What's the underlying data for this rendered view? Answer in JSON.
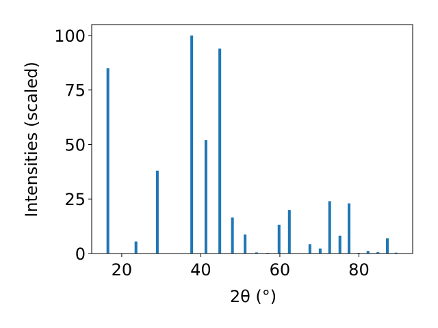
{
  "chart_data": {
    "type": "bar",
    "xlabel": "2θ (°)",
    "ylabel": "Intensities (scaled)",
    "x": [
      16.5,
      23.6,
      29.0,
      37.7,
      41.3,
      44.8,
      48.0,
      51.2,
      54.1,
      56.9,
      59.8,
      62.4,
      67.6,
      70.2,
      72.6,
      75.2,
      77.5,
      79.9,
      82.3,
      84.8,
      87.2,
      89.4
    ],
    "values": [
      85,
      5.5,
      38,
      100,
      52,
      94,
      16.5,
      8.7,
      0.5,
      0.3,
      13.2,
      20,
      4.3,
      2.3,
      24,
      8.2,
      23,
      0.3,
      1.2,
      0.6,
      7,
      0.4
    ],
    "color": "#1f77b4",
    "xlim": [
      12.4,
      93.6
    ],
    "xticks": [
      20,
      40,
      60,
      80
    ],
    "ylim": [
      0,
      105
    ],
    "yticks": [
      0,
      25,
      50,
      75,
      100
    ]
  }
}
